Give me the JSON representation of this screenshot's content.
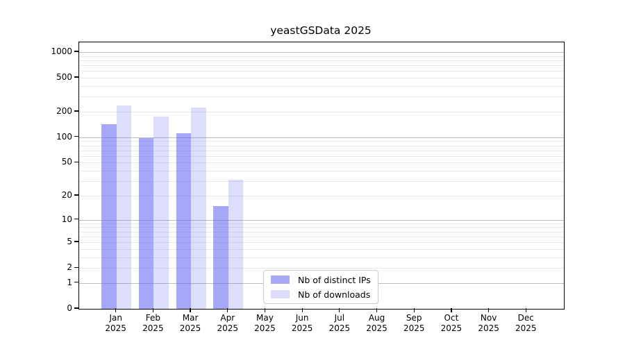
{
  "title": "yeastGSData 2025",
  "chart_data": {
    "type": "bar",
    "title": "yeastGSData 2025",
    "y_scale": "log10(1+x)",
    "ylim": [
      0,
      1300
    ],
    "y_ticks": [
      0,
      1,
      2,
      5,
      10,
      20,
      50,
      100,
      200,
      500,
      1000
    ],
    "grid": "log minor and major gridlines, horizontal only",
    "categories": [
      "Jan",
      "Feb",
      "Mar",
      "Apr",
      "May",
      "Jun",
      "Jul",
      "Aug",
      "Sep",
      "Oct",
      "Nov",
      "Dec"
    ],
    "category_year": "2025",
    "series": [
      {
        "name": "Nb of distinct IPs",
        "legend_color": "#a8a8f5",
        "fill": "rgba(98,98,240,0.56)",
        "values": [
          142,
          98,
          112,
          15,
          0,
          0,
          0,
          0,
          0,
          0,
          0,
          0
        ]
      },
      {
        "name": "Nb of downloads",
        "legend_color": "#ddddfb",
        "fill": "rgba(98,98,240,0.22)",
        "values": [
          235,
          175,
          222,
          31,
          0,
          0,
          0,
          0,
          0,
          0,
          0,
          0
        ]
      }
    ],
    "legend_position": "inside-bottom-center"
  },
  "colors": {
    "axis": "#000000",
    "grid_major": "#bdbdbd",
    "grid_minor": "#e9e9e9",
    "background": "#ffffff"
  }
}
